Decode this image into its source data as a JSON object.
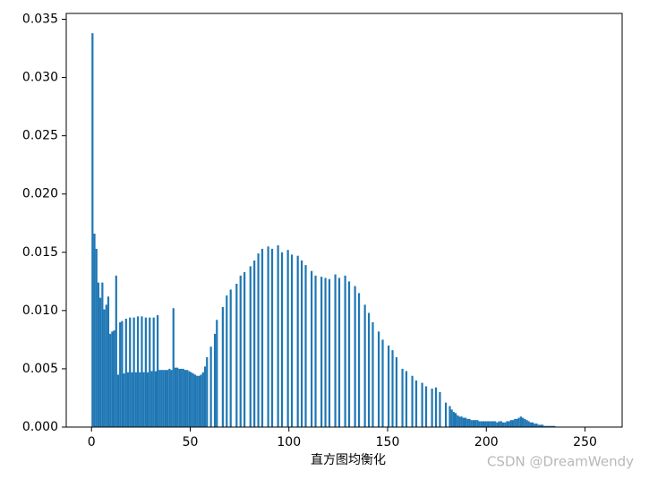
{
  "chart_data": {
    "type": "histogram",
    "xlabel": "直方图均衡化",
    "watermark": "CSDN @DreamWendy",
    "color": "#1f77b4",
    "bins": [
      0,
      1,
      2,
      3,
      4,
      5,
      6,
      7,
      8,
      9,
      10,
      11,
      12,
      13,
      14,
      15,
      16,
      17,
      18,
      19,
      20,
      21,
      22,
      23,
      24,
      25,
      26,
      27,
      28,
      29,
      30,
      31,
      32,
      33,
      34,
      35,
      36,
      37,
      38,
      39,
      40,
      41,
      42,
      43,
      44,
      45,
      46,
      47,
      48,
      49,
      50,
      51,
      52,
      53,
      54,
      55,
      56,
      57,
      58,
      59,
      60,
      61,
      62,
      63,
      64,
      65,
      66,
      67,
      68,
      69,
      70,
      71,
      72,
      73,
      74,
      75,
      76,
      77,
      78,
      79,
      80,
      81,
      82,
      83,
      84,
      85,
      86,
      87,
      88,
      89,
      90,
      91,
      92,
      93,
      94,
      95,
      96,
      97,
      98,
      99,
      100,
      101,
      102,
      103,
      104,
      105,
      106,
      107,
      108,
      109,
      110,
      111,
      112,
      113,
      114,
      115,
      116,
      117,
      118,
      119,
      120,
      121,
      122,
      123,
      124,
      125,
      126,
      127,
      128,
      129,
      130,
      131,
      132,
      133,
      134,
      135,
      136,
      137,
      138,
      139,
      140,
      141,
      142,
      143,
      144,
      145,
      146,
      147,
      148,
      149,
      150,
      151,
      152,
      153,
      154,
      155,
      156,
      157,
      158,
      159,
      160,
      161,
      162,
      163,
      164,
      165,
      166,
      167,
      168,
      169,
      170,
      171,
      172,
      173,
      174,
      175,
      176,
      177,
      178,
      179,
      180,
      181,
      182,
      183,
      184,
      185,
      186,
      187,
      188,
      189,
      190,
      191,
      192,
      193,
      194,
      195,
      196,
      197,
      198,
      199,
      200,
      201,
      202,
      203,
      204,
      205,
      206,
      207,
      208,
      209,
      210,
      211,
      212,
      213,
      214,
      215,
      216,
      217,
      218,
      219,
      220,
      221,
      222,
      223,
      224,
      225,
      226,
      227,
      228,
      229,
      230,
      231,
      232,
      233,
      234,
      235,
      236,
      237,
      238,
      239,
      240,
      241,
      242,
      243,
      244,
      245,
      246,
      247,
      248,
      249,
      250,
      251,
      252,
      253,
      254,
      255,
      256
    ],
    "values": [
      0.0338,
      0.0166,
      0.0153,
      0.0124,
      0.0111,
      0.0124,
      0.0101,
      0.0105,
      0.0112,
      0.008,
      0.0082,
      0.0083,
      0.013,
      0.0045,
      0.009,
      0.0091,
      0.0046,
      0.0093,
      0.0047,
      0.0094,
      0.0047,
      0.0094,
      0.0047,
      0.0095,
      0.0047,
      0.0095,
      0.0047,
      0.0094,
      0.0047,
      0.0094,
      0.0048,
      0.0094,
      0.0048,
      0.0096,
      0.0049,
      0.0049,
      0.0049,
      0.0049,
      0.0049,
      0.005,
      0.0049,
      0.0102,
      0.0051,
      0.0051,
      0.005,
      0.005,
      0.005,
      0.0049,
      0.0049,
      0.0048,
      0.0047,
      0.0046,
      0.0045,
      0.0044,
      0.0044,
      0.0045,
      0.0047,
      0.0052,
      0.006,
      0,
      0.0069,
      0,
      0.008,
      0.0092,
      0,
      0,
      0.0103,
      0,
      0.0113,
      0,
      0.0118,
      0,
      0,
      0.0123,
      0,
      0.013,
      0,
      0.0133,
      0,
      0,
      0.0138,
      0,
      0.0143,
      0,
      0.0149,
      0,
      0.0153,
      0,
      0,
      0.0155,
      0,
      0.0153,
      0,
      0,
      0.0156,
      0,
      0.015,
      0,
      0,
      0.0152,
      0,
      0.0148,
      0,
      0,
      0.0147,
      0,
      0.0143,
      0,
      0.0139,
      0,
      0,
      0.0134,
      0,
      0.013,
      0,
      0,
      0.0129,
      0,
      0.0128,
      0,
      0.0127,
      0,
      0,
      0.0131,
      0,
      0.0128,
      0,
      0,
      0.013,
      0,
      0.0125,
      0,
      0,
      0.0121,
      0,
      0.0115,
      0,
      0,
      0.0105,
      0,
      0.0098,
      0,
      0.009,
      0,
      0,
      0.0082,
      0,
      0.0075,
      0,
      0,
      0.007,
      0,
      0.0066,
      0,
      0.006,
      0,
      0,
      0.005,
      0,
      0.0048,
      0,
      0,
      0.0044,
      0,
      0.004,
      0,
      0,
      0.0038,
      0,
      0.0035,
      0,
      0,
      0.0033,
      0,
      0.0034,
      0,
      0.003,
      0,
      0,
      0.0021,
      0,
      0.0018,
      0.0015,
      0.0013,
      0.0012,
      0.001,
      0.0009,
      0.0009,
      0.0008,
      0.0008,
      0.0007,
      0.0007,
      0.0006,
      0.0006,
      0.0006,
      0.0006,
      0.0005,
      0.0005,
      0.0005,
      0.0005,
      0.0005,
      0.0005,
      0.0005,
      0.0005,
      0.0005,
      0.0004,
      0.0005,
      0.0005,
      0.0004,
      0.0004,
      0.0005,
      0.0005,
      0.0006,
      0.0006,
      0.0007,
      0.0007,
      0.0008,
      0.0009,
      0.0008,
      0.0007,
      0.0006,
      0.0005,
      0.0004,
      0.0004,
      0.0003,
      0.0003,
      0.0002,
      0.0002,
      0.0002,
      0.0001,
      0.0001,
      0.0001,
      0.0001,
      0.0001,
      0.0001,
      0,
      0,
      0,
      0,
      0,
      0,
      0,
      0,
      0,
      0,
      0,
      0,
      0,
      0,
      0,
      0,
      0,
      0,
      0,
      0,
      0
    ],
    "xlim": [
      -12.8,
      268.8
    ],
    "xticks": [
      0,
      50,
      100,
      150,
      200,
      250
    ],
    "ylim": [
      0,
      0.0355
    ],
    "yticks": [
      {
        "value": 0,
        "label": "0.000"
      },
      {
        "value": 0.005,
        "label": "0.005"
      },
      {
        "value": 0.01,
        "label": "0.010"
      },
      {
        "value": 0.015,
        "label": "0.015"
      },
      {
        "value": 0.02,
        "label": "0.020"
      },
      {
        "value": 0.025,
        "label": "0.025"
      },
      {
        "value": 0.03,
        "label": "0.030"
      },
      {
        "value": 0.035,
        "label": "0.035"
      }
    ]
  }
}
